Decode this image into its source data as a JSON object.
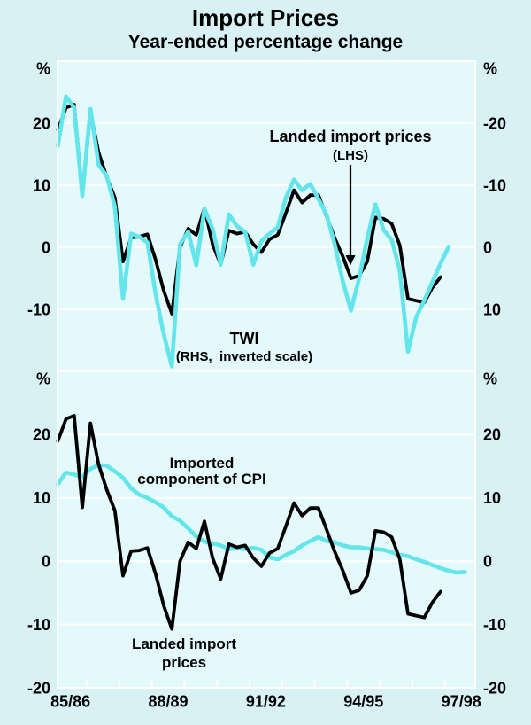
{
  "title": "Import Prices",
  "subtitle": "Year-ended percentage change",
  "colors": {
    "background": "#d8f1f5",
    "plot_background": "#e3f9fb",
    "gridline": "#ffffff",
    "landed": "#000000",
    "twi": "#63e5ec",
    "cpi": "#63e5ec",
    "text": "#000000"
  },
  "annotations": {
    "landed_lhs": {
      "line1": "Landed import prices",
      "line2": "(LHS)"
    },
    "twi": {
      "line1": "TWI",
      "line2": "(RHS,  inverted scale)"
    },
    "cpi": {
      "line1": "Imported",
      "line2": "component of CPI"
    },
    "landed_bottom": {
      "line1": "Landed import",
      "line2": "prices"
    }
  },
  "x_tick_labels": [
    "85/86",
    "88/89",
    "91/92",
    "94/95",
    "97/98"
  ],
  "chart_data": [
    {
      "type": "line",
      "panel": "top",
      "x_start": 1985.5,
      "x_step": 0.25,
      "x_unit": "years (quarterly, financial years labelled)",
      "ylim_left": [
        -20,
        30
      ],
      "grid": true,
      "axes": {
        "left": {
          "unit": "%",
          "ticks": [
            20,
            10,
            0,
            -10
          ],
          "inverted": false
        },
        "right": {
          "unit": "%",
          "ticks": [
            -20,
            -10,
            0,
            10
          ],
          "inverted": true
        }
      },
      "series": [
        {
          "name": "Landed import prices",
          "axis": "left",
          "color_key": "landed",
          "values": [
            19,
            22.5,
            23,
            8.5,
            21.8,
            15.3,
            11.3,
            8,
            -2.3,
            1.6,
            1.7,
            2.1,
            -2,
            -7,
            -10.7,
            0,
            3,
            2,
            6.3,
            0.5,
            -2.8,
            2.7,
            2.2,
            2.5,
            0.5,
            -0.8,
            1.3,
            2,
            5.5,
            9.2,
            7.2,
            8.4,
            8.4,
            5,
            1.5,
            -1.5,
            -5,
            -4.6,
            -2.3,
            4.8,
            4.6,
            3.8,
            0.3,
            -8.3,
            -8.6,
            -8.9,
            -6.5,
            -4.8
          ]
        },
        {
          "name": "TWI",
          "axis": "right_inverted",
          "color_key": "twi",
          "values": [
            -16.4,
            -24.3,
            -22.5,
            -8.3,
            -22.3,
            -13.3,
            -11.5,
            -6.5,
            8.3,
            -2.2,
            -1.7,
            -0.8,
            7.5,
            14,
            19.2,
            -0.5,
            -2.5,
            2.9,
            -6.2,
            -3,
            2.8,
            -5.3,
            -3.4,
            -2.5,
            2.8,
            -1,
            -2.2,
            -3.2,
            -8,
            -10.9,
            -9.2,
            -10.2,
            -7.8,
            -5.3,
            -0.5,
            5.5,
            10.2,
            5,
            -1.5,
            -6.9,
            -2.8,
            -1.2,
            3.8,
            16.8,
            11.3,
            8.6,
            5.6,
            2.6,
            -0.1
          ]
        }
      ]
    },
    {
      "type": "line",
      "panel": "bottom",
      "x_start": 1985.5,
      "x_step": 0.25,
      "x_unit": "years (quarterly, financial years labelled)",
      "ylim_left": [
        -20,
        30
      ],
      "grid": true,
      "axes": {
        "left": {
          "unit": "%",
          "ticks": [
            20,
            10,
            0,
            -10,
            -20
          ],
          "inverted": false
        },
        "right": {
          "unit": "%",
          "ticks": [
            20,
            10,
            0,
            -10,
            -20
          ],
          "inverted": false
        }
      },
      "series": [
        {
          "name": "Imported component of CPI",
          "axis": "left",
          "color_key": "cpi",
          "values": [
            12.2,
            14,
            13.7,
            13.3,
            14.6,
            15.2,
            15.1,
            14.2,
            13.2,
            11.5,
            10.5,
            10,
            9.3,
            8.5,
            7.1,
            6.4,
            5.2,
            3.9,
            3.1,
            2.8,
            2.5,
            1.9,
            2.1,
            1.9,
            2.1,
            1.8,
            0.6,
            0.3,
            1,
            1.6,
            2.5,
            3.2,
            3.8,
            3.2,
            3,
            2.5,
            2.2,
            2.2,
            2,
            1.9,
            1.8,
            1.4,
            1,
            0.8,
            0.3,
            -0.1,
            -0.6,
            -1.1,
            -1.5,
            -1.8,
            -1.7
          ]
        },
        {
          "name": "Landed import prices",
          "axis": "left",
          "color_key": "landed",
          "values": [
            19,
            22.5,
            23,
            8.5,
            21.8,
            15.3,
            11.3,
            8,
            -2.3,
            1.6,
            1.7,
            2.1,
            -2,
            -7,
            -10.7,
            0,
            3,
            2,
            6.3,
            0.5,
            -2.8,
            2.7,
            2.2,
            2.5,
            0.5,
            -0.8,
            1.3,
            2,
            5.5,
            9.2,
            7.2,
            8.4,
            8.4,
            5,
            1.5,
            -1.5,
            -5,
            -4.6,
            -2.3,
            4.8,
            4.6,
            3.8,
            0.3,
            -8.3,
            -8.6,
            -8.9,
            -6.5,
            -4.8
          ]
        }
      ]
    }
  ]
}
